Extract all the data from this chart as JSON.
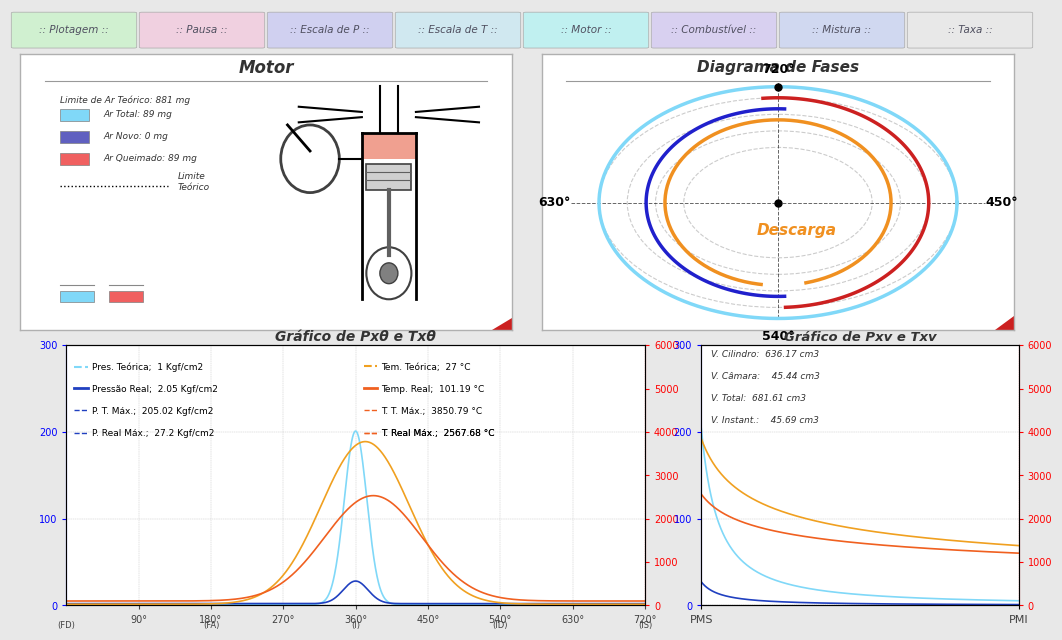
{
  "bg_color": "#e8e8e8",
  "toolbar_buttons": [
    ":: Plotagem ::",
    ":: Pausa ::",
    ":: Escala de P ::",
    ":: Escala de T ::",
    ":: Motor ::",
    ":: Combustível ::",
    ":: Mistura ::",
    ":: Taxa ::"
  ],
  "toolbar_colors": [
    "#d0f0d0",
    "#f0d0e0",
    "#d0d0f0",
    "#d0e8f0",
    "#c0f0f0",
    "#d8d0f0",
    "#d0d8f0",
    "#e8e8e8"
  ],
  "motor_title": "Motor",
  "motor_legend_title": "Limite de Ar Teórico: 881 mg",
  "motor_legend_items": [
    {
      "label": "Ar Total: 89 mg",
      "color": "#80d8f8"
    },
    {
      "label": "Ar Novo: 0 mg",
      "color": "#6060c0"
    },
    {
      "label": "Ar Queimado: 89 mg",
      "color": "#f06060"
    }
  ],
  "motor_limite_label": "Limite\nTeórico",
  "diagrama_title": "Diagrama de Fases",
  "diagrama_labels": {
    "top": "720°",
    "right": "450°",
    "bottom": "540°",
    "left": "630°"
  },
  "diagrama_text": "Descarga",
  "graph1_title": "Gráfico de Pxθ e Txθ",
  "graph1_left_legend": [
    {
      "label": "Pres. Teórica;",
      "value": "1 Kgf/cm2",
      "color": "#80d8f8"
    },
    {
      "label": "Pressão Real;",
      "value": "2.05 Kgf/cm2",
      "color": "#2040c0"
    },
    {
      "label": "P. T. Máx.;",
      "value": "205.02 Kgf/cm2",
      "color": "#2040c0"
    },
    {
      "label": "P. Real Máx.;",
      "value": "27.2 Kgf/cm2",
      "color": "#2040c0"
    }
  ],
  "graph1_right_legend": [
    {
      "label": "Tem. Teórica;",
      "value": "27 °C",
      "color": "#f0a020"
    },
    {
      "label": "Temp. Real;",
      "value": "101.19 °C",
      "color": "#f06020"
    },
    {
      "label": "T. T. Máx.;",
      "value": "3850.79 °C",
      "color": "#f06020"
    },
    {
      "label": "T. Real Máx.;",
      "value": "2567.68 °C",
      "color": "#f06020"
    }
  ],
  "graph1_xlabel_ticks": [
    "90°",
    "180°",
    "270°",
    "360°",
    "450°",
    "540°",
    "630°",
    "720°"
  ],
  "graph1_xlabel_ticks_x": [
    90,
    180,
    270,
    360,
    450,
    540,
    630,
    720
  ],
  "graph1_yleft_max": 300,
  "graph1_yright_max": 6000,
  "graph2_title": "Gráfico de Pxv e Txv",
  "graph2_legend": [
    {
      "label": "V. Cilindro:",
      "value": "636.17 cm3"
    },
    {
      "label": "V. Câmara:",
      "value": "  45.44 cm3"
    },
    {
      "label": "V. Total:",
      "value": "681.61 cm3"
    },
    {
      "label": "V. Instant.:",
      "value": "  45.69 cm3"
    }
  ],
  "graph2_xlabel": [
    "PMS",
    "PMI"
  ],
  "graph2_yleft_max": 300,
  "graph2_yright_max": 6000,
  "bottom_labels": [
    "(FD)",
    "(FA)",
    "(I)",
    "(ID)",
    "(IS)"
  ],
  "bottom_x": [
    0,
    180,
    360,
    540,
    720
  ]
}
